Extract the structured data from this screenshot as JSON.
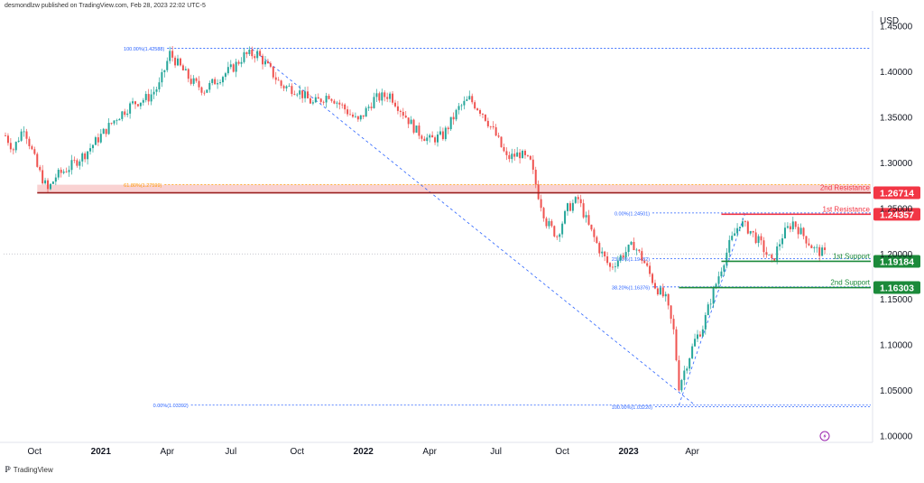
{
  "header": {
    "info": "desmondlzw published on TradingView.com, Feb 28, 2023 22:02 UTC-5"
  },
  "footer": {
    "brand": "TradingView",
    "logo_icon": "tradingview-logo-icon"
  },
  "chart_data": {
    "type": "candlestick",
    "currency_label": "USD",
    "y_axis": {
      "ylim": [
        0.995,
        1.465
      ],
      "ticks": [
        "1.45000",
        "1.40000",
        "1.35000",
        "1.30000",
        "1.25000",
        "1.20000",
        "1.15000",
        "1.10000",
        "1.05000",
        "1.00000"
      ]
    },
    "x_axis": {
      "ticks": [
        "Oct",
        "2021",
        "Apr",
        "Jul",
        "Oct",
        "2022",
        "Apr",
        "Jul",
        "Oct",
        "2023",
        "Apr"
      ],
      "bold_ticks": [
        "2021",
        "2022",
        "2023"
      ]
    },
    "current_price": 1.2,
    "price_path": [
      [
        0,
        1.33
      ],
      [
        3,
        1.315
      ],
      [
        7,
        1.34
      ],
      [
        12,
        1.295
      ],
      [
        16,
        1.27
      ],
      [
        19,
        1.285
      ],
      [
        24,
        1.295
      ],
      [
        30,
        1.31
      ],
      [
        36,
        1.33
      ],
      [
        42,
        1.35
      ],
      [
        48,
        1.365
      ],
      [
        54,
        1.372
      ],
      [
        58,
        1.385
      ],
      [
        62,
        1.42
      ],
      [
        66,
        1.405
      ],
      [
        70,
        1.39
      ],
      [
        75,
        1.38
      ],
      [
        80,
        1.392
      ],
      [
        86,
        1.405
      ],
      [
        90,
        1.418
      ],
      [
        95,
        1.42
      ],
      [
        99,
        1.405
      ],
      [
        104,
        1.385
      ],
      [
        110,
        1.38
      ],
      [
        116,
        1.365
      ],
      [
        122,
        1.375
      ],
      [
        127,
        1.362
      ],
      [
        133,
        1.345
      ],
      [
        139,
        1.37
      ],
      [
        145,
        1.375
      ],
      [
        150,
        1.355
      ],
      [
        155,
        1.335
      ],
      [
        160,
        1.325
      ],
      [
        165,
        1.33
      ],
      [
        171,
        1.36
      ],
      [
        175,
        1.37
      ],
      [
        180,
        1.355
      ],
      [
        185,
        1.33
      ],
      [
        189,
        1.305
      ],
      [
        194,
        1.31
      ],
      [
        198,
        1.3
      ],
      [
        201,
        1.265
      ],
      [
        204,
        1.235
      ],
      [
        208,
        1.22
      ],
      [
        212,
        1.25
      ],
      [
        216,
        1.26
      ],
      [
        220,
        1.23
      ],
      [
        224,
        1.205
      ],
      [
        228,
        1.185
      ],
      [
        233,
        1.2
      ],
      [
        237,
        1.21
      ],
      [
        241,
        1.19
      ],
      [
        245,
        1.165
      ],
      [
        249,
        1.15
      ],
      [
        252,
        1.115
      ],
      [
        254,
        1.055
      ],
      [
        257,
        1.08
      ],
      [
        260,
        1.105
      ],
      [
        263,
        1.12
      ],
      [
        266,
        1.15
      ],
      [
        270,
        1.185
      ],
      [
        273,
        1.21
      ],
      [
        277,
        1.235
      ],
      [
        281,
        1.225
      ],
      [
        285,
        1.21
      ],
      [
        289,
        1.19
      ],
      [
        293,
        1.22
      ],
      [
        297,
        1.235
      ],
      [
        301,
        1.22
      ],
      [
        305,
        1.205
      ],
      [
        309,
        1.2
      ]
    ],
    "candles_count": 310,
    "horizontal_levels": [
      {
        "name": "2nd Resistance",
        "value": 1.26714,
        "label": "1.26714",
        "kind": "resistance"
      },
      {
        "name": "1st Resistance",
        "value": 1.24357,
        "label": "1.24357",
        "kind": "resistance"
      },
      {
        "name": "1st Support",
        "value": 1.19184,
        "label": "1.19184",
        "kind": "support"
      },
      {
        "name": "2nd Support",
        "value": 1.16303,
        "label": "1.16303",
        "kind": "support"
      }
    ],
    "fib_labels": [
      {
        "text": "100.00%(1.42588)",
        "value": 1.42588
      },
      {
        "text": "61.80%(1.27599)",
        "value": 1.27599
      },
      {
        "text": "0.00%(1.03392)",
        "value": 1.03392
      },
      {
        "text": "0.00%(1.24501)",
        "value": 1.24501
      },
      {
        "text": "23.60%(1.19482)",
        "value": 1.19482
      },
      {
        "text": "38.20%(1.16376)",
        "value": 1.16376
      },
      {
        "text": "100.00%(1.03220)",
        "value": 1.0322
      }
    ],
    "colors": {
      "up": "#26a69a",
      "down": "#ef5350",
      "resistance": "#f23645",
      "support": "#22ab94",
      "support_badge": "#1b8a3a",
      "fib": "#2962ff",
      "fib_orange": "#ff9800",
      "zone": "#f8c7c7",
      "axis_text": "#131722"
    }
  }
}
